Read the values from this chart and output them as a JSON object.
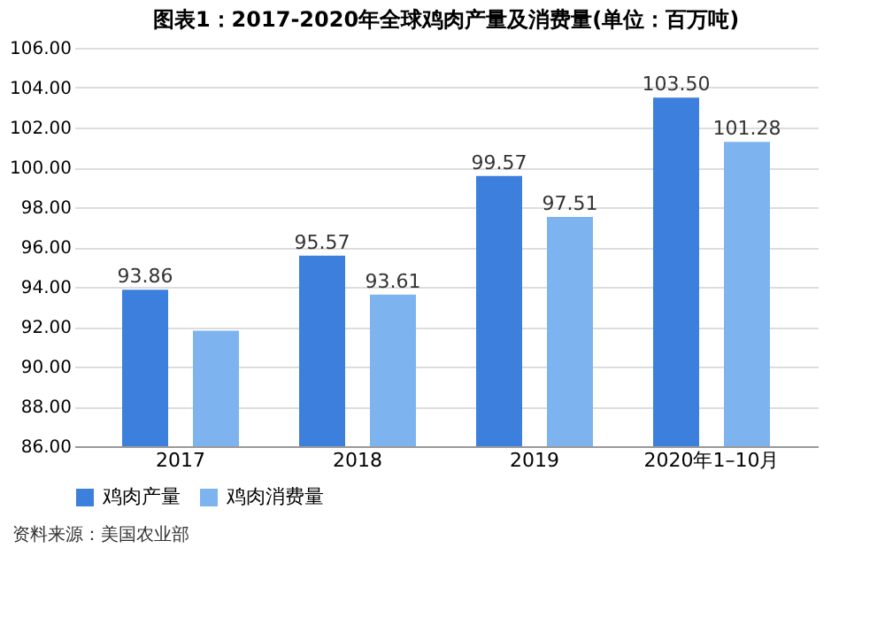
{
  "chart_data": {
    "type": "bar",
    "title": "图表1：2017-2020年全球鸡肉产量及消费量(单位：百万吨)",
    "categories": [
      "2017",
      "2018",
      "2019",
      "2020年1–10月"
    ],
    "series": [
      {
        "name": "鸡肉产量",
        "color": "#3d7fdc",
        "values": [
          93.86,
          95.57,
          99.57,
          103.5
        ],
        "value_labels": [
          "93.86",
          "95.57",
          "99.57",
          "103.50"
        ]
      },
      {
        "name": "鸡肉消费量",
        "color": "#7db4f0",
        "values": [
          91.8,
          93.61,
          97.51,
          101.28
        ],
        "value_labels": [
          null,
          "93.61",
          "97.51",
          "101.28"
        ]
      }
    ],
    "ylim": [
      86,
      106
    ],
    "yticks": [
      {
        "value": 86,
        "label": "86.00"
      },
      {
        "value": 88,
        "label": "88.00"
      },
      {
        "value": 90,
        "label": "90.00"
      },
      {
        "value": 92,
        "label": "92.00"
      },
      {
        "value": 94,
        "label": "94.00"
      },
      {
        "value": 96,
        "label": "96.00"
      },
      {
        "value": 98,
        "label": "98.00"
      },
      {
        "value": 100,
        "label": "100.00"
      },
      {
        "value": 102,
        "label": "102.00"
      },
      {
        "value": 104,
        "label": "104.00"
      },
      {
        "value": 106,
        "label": "106.00"
      }
    ],
    "grid": "y",
    "legend": "bottom",
    "annotations": [
      "资料来源：美国农业部"
    ]
  }
}
